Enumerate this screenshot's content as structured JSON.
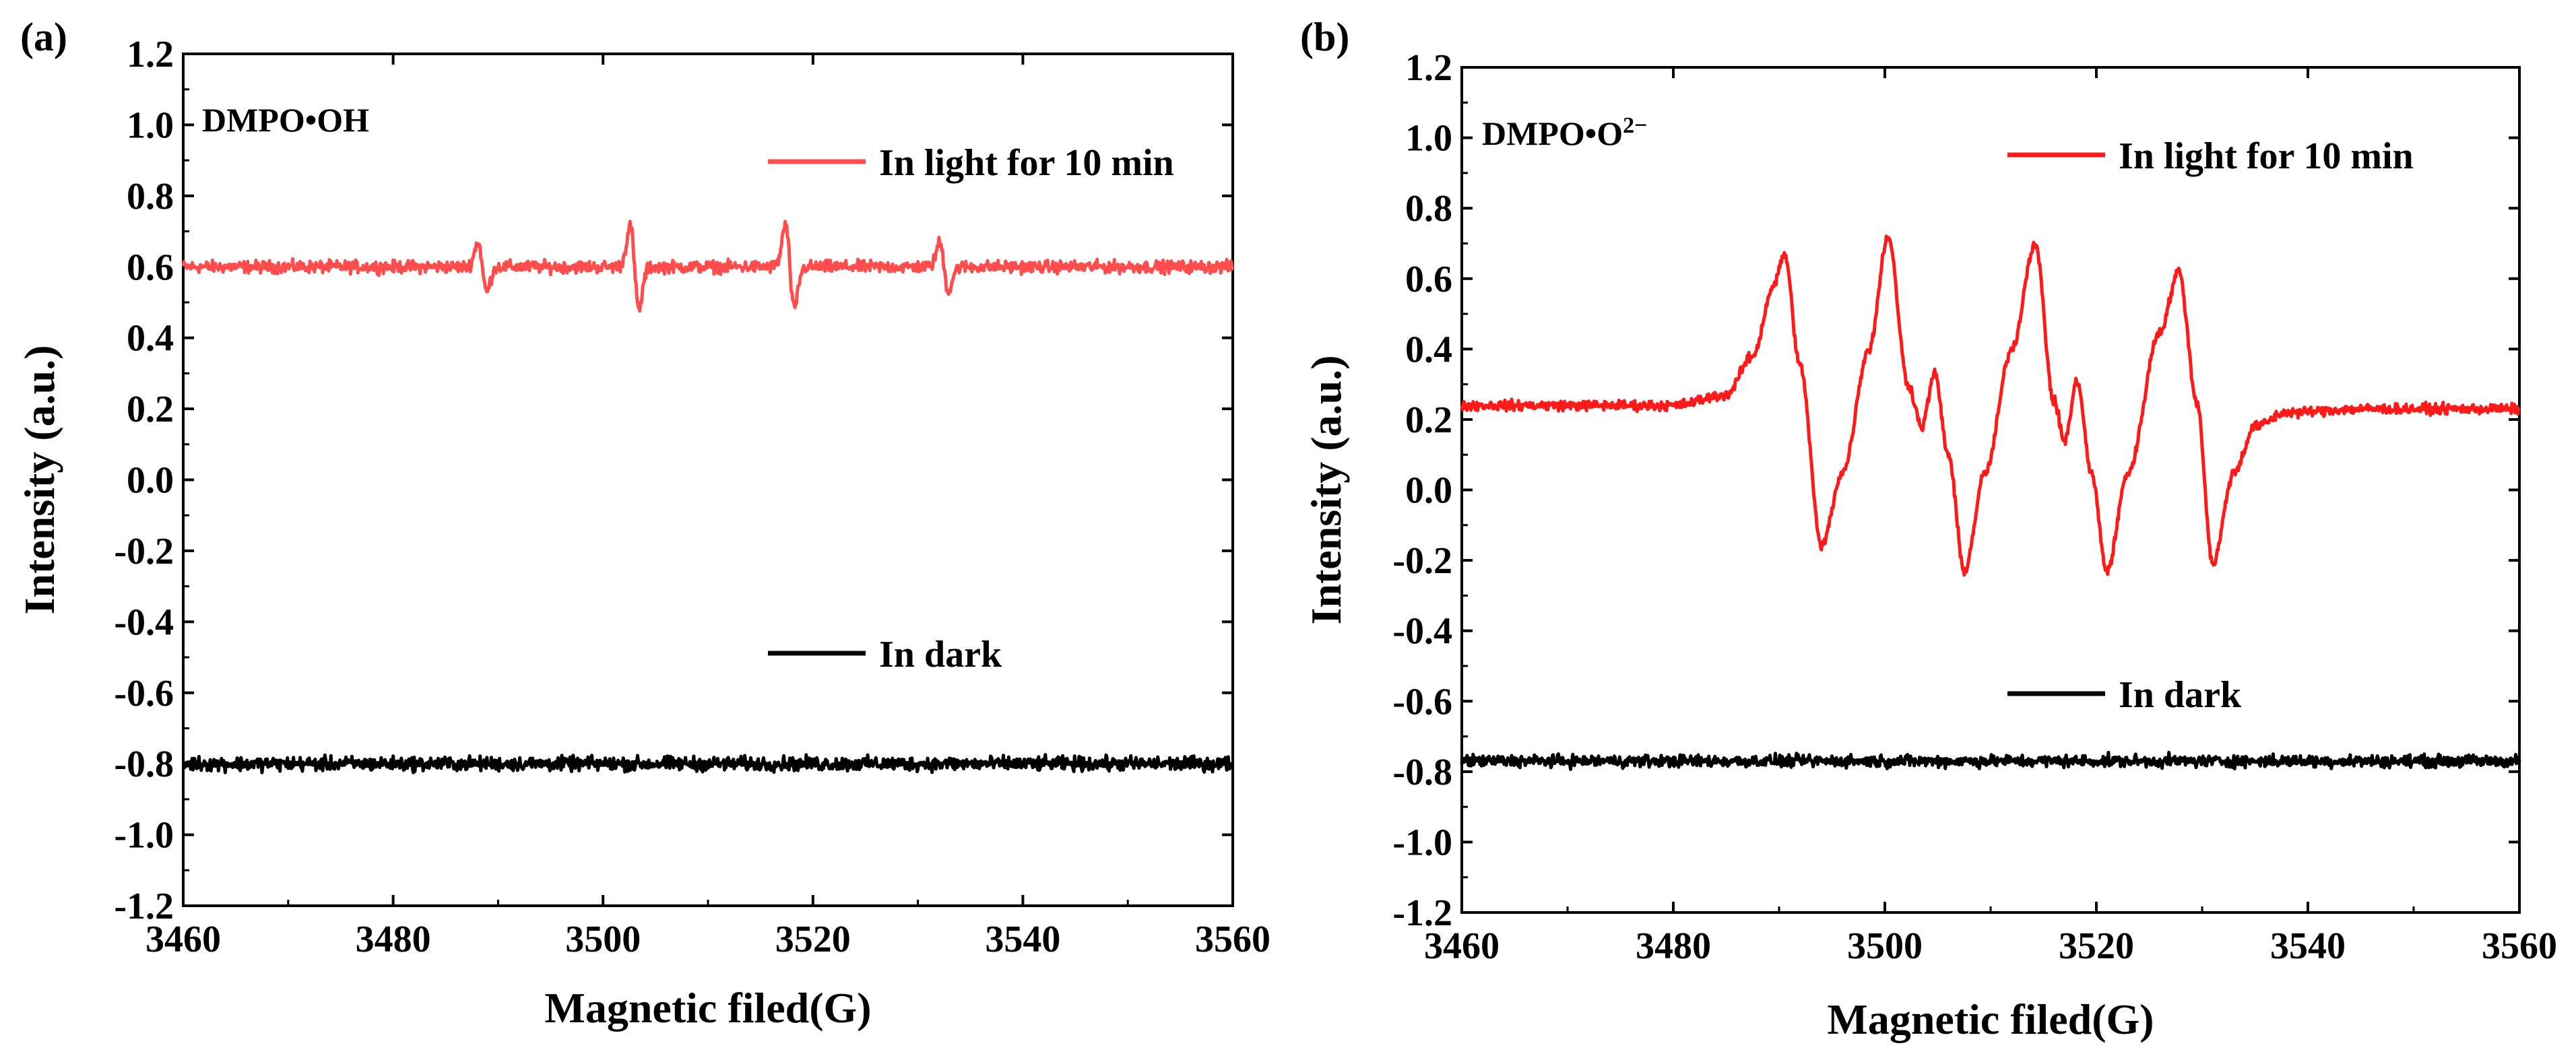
{
  "colors": {
    "light": "#ff4d4d",
    "light_b": "#ff1a1a",
    "dark": "#000000",
    "axis": "#000000"
  },
  "chart_data": [
    {
      "panel": "(a)",
      "type": "line",
      "annotation": "DMPO•OH",
      "xlabel": "Magnetic filed(G)",
      "ylabel": "Intensity (a.u.)",
      "xlim": [
        3460,
        3560
      ],
      "ylim": [
        -1.2,
        1.2
      ],
      "xticks": [
        "3460",
        "3480",
        "3500",
        "3520",
        "3540",
        "3560"
      ],
      "yticks": [
        "-1.2",
        "-1.0",
        "-0.8",
        "-0.6",
        "-0.4",
        "-0.2",
        "0.0",
        "0.2",
        "0.4",
        "0.6",
        "0.8",
        "1.0",
        "1.2"
      ],
      "series": [
        {
          "name": "In light for 10 min",
          "color_key": "light",
          "baseline": 0.6,
          "noise": 0.012,
          "peaks": [
            {
              "center": 3488.5,
              "amp": 0.07,
              "width": 0.6
            },
            {
              "center": 3503.0,
              "amp": 0.12,
              "width": 0.6
            },
            {
              "center": 3517.8,
              "amp": 0.12,
              "width": 0.6
            },
            {
              "center": 3532.5,
              "amp": 0.07,
              "width": 0.6
            }
          ]
        },
        {
          "name": "In dark",
          "color_key": "dark",
          "baseline": -0.8,
          "noise": 0.014,
          "peaks": []
        }
      ]
    },
    {
      "panel": "(b)",
      "type": "line",
      "annotation": "DMPO•O",
      "annotation_sup": "2−",
      "xlabel": "Magnetic filed(G)",
      "ylabel": "Intensity (a.u.)",
      "xlim": [
        3460,
        3560
      ],
      "ylim": [
        -1.2,
        1.2
      ],
      "xticks": [
        "3460",
        "3480",
        "3500",
        "3520",
        "3540",
        "3560"
      ],
      "yticks": [
        "-1.2",
        "-1.0",
        "-0.8",
        "-0.6",
        "-0.4",
        "-0.2",
        "0.0",
        "0.2",
        "0.4",
        "0.6",
        "0.8",
        "1.0",
        "1.2"
      ],
      "series": [
        {
          "name": "In light for 10 min",
          "color_key": "light_b",
          "baseline": 0.24,
          "noise": 0.01,
          "keypoints": [
            [
              3460,
              0.24
            ],
            [
              3480,
              0.24
            ],
            [
              3485,
              0.27
            ],
            [
              3487.5,
              0.38
            ],
            [
              3489.5,
              0.58
            ],
            [
              3490.5,
              0.67
            ],
            [
              3492,
              0.35
            ],
            [
              3494,
              -0.16
            ],
            [
              3496,
              0.05
            ],
            [
              3498.5,
              0.4
            ],
            [
              3500.3,
              0.72
            ],
            [
              3502.2,
              0.3
            ],
            [
              3503.5,
              0.18
            ],
            [
              3504.7,
              0.33
            ],
            [
              3506,
              0.1
            ],
            [
              3507.5,
              -0.23
            ],
            [
              3509.5,
              0.05
            ],
            [
              3512,
              0.4
            ],
            [
              3514.2,
              0.7
            ],
            [
              3516,
              0.25
            ],
            [
              3517,
              0.14
            ],
            [
              3518.2,
              0.31
            ],
            [
              3519.5,
              0.05
            ],
            [
              3521,
              -0.23
            ],
            [
              3523,
              0.05
            ],
            [
              3526,
              0.45
            ],
            [
              3527.8,
              0.62
            ],
            [
              3529.5,
              0.25
            ],
            [
              3531,
              -0.21
            ],
            [
              3533,
              0.05
            ],
            [
              3535,
              0.18
            ],
            [
              3538,
              0.22
            ],
            [
              3545,
              0.23
            ],
            [
              3560,
              0.23
            ]
          ]
        },
        {
          "name": "In dark",
          "color_key": "dark",
          "baseline": -0.77,
          "noise": 0.012,
          "peaks": []
        }
      ]
    }
  ]
}
